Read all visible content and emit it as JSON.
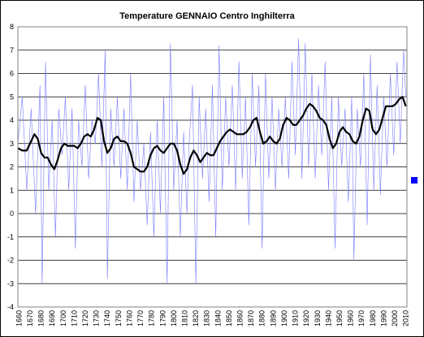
{
  "chart_data": {
    "type": "line",
    "title": "Temperature GENNAIO Centro Inghilterra",
    "xlabel": "",
    "ylabel": "",
    "xlim": [
      1659,
      2011
    ],
    "ylim": [
      -4,
      8
    ],
    "yticks": [
      -4,
      -3,
      -2,
      -1,
      0,
      1,
      2,
      3,
      4,
      5,
      6,
      7,
      8
    ],
    "xticks": [
      1660,
      1670,
      1680,
      1690,
      1700,
      1710,
      1720,
      1730,
      1740,
      1750,
      1760,
      1770,
      1780,
      1790,
      1800,
      1810,
      1820,
      1830,
      1840,
      1850,
      1860,
      1870,
      1880,
      1890,
      1900,
      1910,
      1920,
      1930,
      1940,
      1950,
      1960,
      1970,
      1980,
      1990,
      2000,
      2010
    ],
    "grid": "horizontal",
    "legend": "right",
    "colors": {
      "raw": "#7b7bff",
      "smooth": "#000000",
      "marker": "#0000ff"
    },
    "series": [
      {
        "style": "thin",
        "x": [
          1659,
          1663,
          1667,
          1671,
          1675,
          1679,
          1681,
          1684,
          1687,
          1690,
          1693,
          1696,
          1699,
          1702,
          1705,
          1708,
          1711,
          1714,
          1717,
          1720,
          1723,
          1726,
          1729,
          1732,
          1735,
          1738,
          1740,
          1743,
          1746,
          1749,
          1752,
          1755,
          1758,
          1761,
          1764,
          1767,
          1770,
          1773,
          1776,
          1779,
          1782,
          1785,
          1788,
          1791,
          1794,
          1797,
          1800,
          1803,
          1806,
          1809,
          1812,
          1814,
          1817,
          1820,
          1823,
          1826,
          1829,
          1832,
          1835,
          1838,
          1841,
          1844,
          1847,
          1850,
          1853,
          1856,
          1859,
          1862,
          1865,
          1868,
          1871,
          1874,
          1877,
          1880,
          1883,
          1886,
          1889,
          1892,
          1895,
          1898,
          1901,
          1904,
          1907,
          1910,
          1913,
          1916,
          1919,
          1922,
          1925,
          1928,
          1931,
          1934,
          1937,
          1940,
          1943,
          1946,
          1949,
          1952,
          1955,
          1958,
          1961,
          1963,
          1966,
          1969,
          1972,
          1975,
          1978,
          1981,
          1984,
          1987,
          1990,
          1993,
          1996,
          1999,
          2002,
          2005,
          2008,
          2010
        ],
        "values": [
          3.0,
          5.0,
          1.0,
          4.5,
          0.0,
          5.5,
          -3.0,
          6.5,
          1.0,
          4.0,
          -1.0,
          4.5,
          2.5,
          5.0,
          1.0,
          4.5,
          -1.5,
          4.0,
          2.0,
          5.5,
          1.5,
          4.0,
          3.0,
          6.0,
          2.0,
          7.0,
          -2.8,
          4.5,
          2.0,
          5.0,
          1.5,
          4.5,
          1.0,
          6.0,
          0.5,
          4.0,
          1.0,
          3.0,
          -0.5,
          3.5,
          -1.0,
          4.0,
          0.0,
          5.0,
          -3.0,
          7.3,
          1.0,
          4.0,
          -1.0,
          3.5,
          0.0,
          3.0,
          5.5,
          -3.0,
          5.0,
          1.5,
          4.5,
          0.5,
          5.5,
          -1.0,
          7.2,
          1.0,
          5.0,
          2.0,
          5.5,
          1.0,
          6.5,
          1.5,
          5.0,
          -0.5,
          6.0,
          2.0,
          5.5,
          -1.5,
          6.0,
          1.5,
          5.0,
          1.0,
          4.5,
          2.0,
          5.0,
          1.5,
          6.5,
          2.5,
          7.5,
          1.5,
          7.3,
          2.0,
          6.0,
          1.5,
          5.5,
          2.5,
          6.5,
          1.0,
          5.0,
          -1.5,
          5.0,
          2.0,
          4.5,
          0.5,
          5.0,
          -2.0,
          4.5,
          2.0,
          6.0,
          -0.5,
          6.8,
          1.0,
          5.5,
          0.8,
          5.0,
          2.0,
          6.0,
          2.5,
          6.5,
          3.0,
          7.0,
          5.0
        ]
      },
      {
        "style": "thick",
        "x": [
          1659,
          1663,
          1667,
          1671,
          1674,
          1677,
          1680,
          1683,
          1686,
          1689,
          1692,
          1695,
          1698,
          1701,
          1704,
          1707,
          1710,
          1713,
          1716,
          1719,
          1722,
          1725,
          1728,
          1731,
          1734,
          1737,
          1740,
          1743,
          1746,
          1749,
          1752,
          1755,
          1758,
          1761,
          1764,
          1767,
          1770,
          1773,
          1776,
          1779,
          1782,
          1785,
          1788,
          1791,
          1794,
          1797,
          1800,
          1803,
          1806,
          1809,
          1812,
          1815,
          1818,
          1821,
          1824,
          1827,
          1830,
          1833,
          1836,
          1839,
          1842,
          1845,
          1848,
          1851,
          1854,
          1857,
          1860,
          1863,
          1866,
          1869,
          1872,
          1875,
          1878,
          1881,
          1884,
          1887,
          1890,
          1893,
          1896,
          1899,
          1902,
          1905,
          1908,
          1911,
          1914,
          1917,
          1920,
          1923,
          1926,
          1929,
          1932,
          1935,
          1938,
          1941,
          1944,
          1947,
          1950,
          1953,
          1956,
          1959,
          1962,
          1965,
          1968,
          1971,
          1974,
          1977,
          1980,
          1983,
          1986,
          1989,
          1992,
          1995,
          1998,
          2001,
          2004,
          2007,
          2010
        ],
        "values": [
          2.8,
          2.7,
          2.7,
          3.1,
          3.4,
          3.2,
          2.6,
          2.4,
          2.4,
          2.1,
          1.9,
          2.3,
          2.8,
          3.0,
          2.9,
          2.9,
          2.9,
          2.8,
          3.0,
          3.3,
          3.4,
          3.3,
          3.6,
          4.1,
          4.0,
          3.1,
          2.6,
          2.8,
          3.2,
          3.3,
          3.1,
          3.1,
          3.0,
          2.6,
          2.0,
          1.9,
          1.8,
          1.8,
          2.0,
          2.5,
          2.8,
          2.9,
          2.7,
          2.6,
          2.8,
          3.0,
          3.0,
          2.7,
          2.1,
          1.7,
          1.9,
          2.4,
          2.7,
          2.5,
          2.2,
          2.4,
          2.6,
          2.5,
          2.5,
          2.8,
          3.1,
          3.3,
          3.5,
          3.6,
          3.5,
          3.4,
          3.4,
          3.4,
          3.5,
          3.7,
          4.0,
          4.1,
          3.5,
          3.0,
          3.1,
          3.3,
          3.1,
          3.0,
          3.2,
          3.8,
          4.1,
          4.0,
          3.8,
          3.8,
          4.0,
          4.2,
          4.5,
          4.7,
          4.6,
          4.4,
          4.1,
          4.0,
          3.8,
          3.2,
          2.8,
          3.0,
          3.5,
          3.7,
          3.5,
          3.4,
          3.1,
          3.0,
          3.3,
          4.0,
          4.5,
          4.4,
          3.6,
          3.4,
          3.6,
          4.1,
          4.6,
          4.6,
          4.6,
          4.7,
          4.9,
          5.0,
          4.6
        ]
      }
    ]
  }
}
